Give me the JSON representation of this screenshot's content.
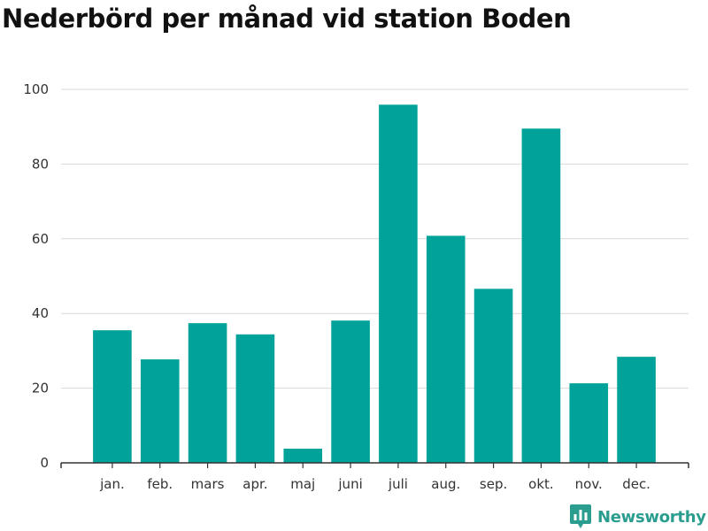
{
  "chart_data": {
    "type": "bar",
    "title": "Nederbörd per månad vid station Boden",
    "categories": [
      "jan.",
      "feb.",
      "mars",
      "apr.",
      "maj",
      "juni",
      "juli",
      "aug.",
      "sep.",
      "okt.",
      "nov.",
      "dec."
    ],
    "values": [
      35.5,
      27.7,
      37.4,
      34.4,
      3.8,
      38.1,
      95.9,
      60.8,
      46.6,
      89.5,
      21.3,
      28.4
    ],
    "xlabel": "",
    "ylabel": "",
    "ylim": [
      0,
      100
    ],
    "yticks": [
      0,
      20,
      40,
      60,
      80,
      100
    ],
    "grid": true,
    "bar_color": "#00a29a"
  },
  "branding": {
    "name": "Newsworthy",
    "color": "#2a9d8f",
    "icon": "bar-chart-logo-icon"
  }
}
